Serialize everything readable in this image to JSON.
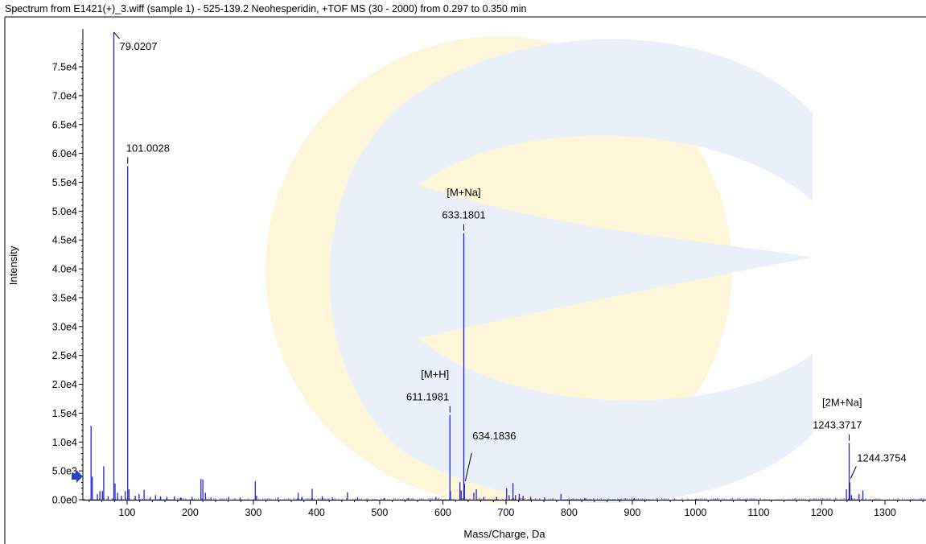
{
  "window": {
    "title": "Spectrum from E1421(+)_3.wiff (sample 1) - 525-139.2 Neohesperidin, +TOF MS (30 - 2000) from 0.297 to 0.350 min"
  },
  "colors": {
    "spectrum": "#2222dd",
    "axis": "#000000",
    "marker": "#2244cc",
    "watermark_yellow": "#fdf6d8",
    "watermark_blue": "#eaf0fa"
  },
  "chart_data": {
    "type": "bar",
    "xlabel": "Mass/Charge, Da",
    "ylabel": "Intensity",
    "xlim": [
      30,
      1365
    ],
    "ylim": [
      0,
      81000
    ],
    "grid": false,
    "legend": "none",
    "x_ticks": [
      {
        "value": 100,
        "label": "100"
      },
      {
        "value": 200,
        "label": "200"
      },
      {
        "value": 300,
        "label": "300"
      },
      {
        "value": 400,
        "label": "400"
      },
      {
        "value": 500,
        "label": "500"
      },
      {
        "value": 600,
        "label": "600"
      },
      {
        "value": 700,
        "label": "700"
      },
      {
        "value": 800,
        "label": "800"
      },
      {
        "value": 900,
        "label": "900"
      },
      {
        "value": 1000,
        "label": "1000"
      },
      {
        "value": 1100,
        "label": "1100"
      },
      {
        "value": 1200,
        "label": "1200"
      },
      {
        "value": 1300,
        "label": "1300"
      }
    ],
    "y_ticks": [
      {
        "value": 0,
        "label": "0.0e0"
      },
      {
        "value": 5000,
        "label": "5.0e3"
      },
      {
        "value": 10000,
        "label": "1.0e4"
      },
      {
        "value": 15000,
        "label": "1.5e4"
      },
      {
        "value": 20000,
        "label": "2.0e4"
      },
      {
        "value": 25000,
        "label": "2.5e4"
      },
      {
        "value": 30000,
        "label": "3.0e4"
      },
      {
        "value": 35000,
        "label": "3.5e4"
      },
      {
        "value": 40000,
        "label": "4.0e4"
      },
      {
        "value": 45000,
        "label": "4.5e4"
      },
      {
        "value": 50000,
        "label": "5.0e4"
      },
      {
        "value": 55000,
        "label": "5.5e4"
      },
      {
        "value": 60000,
        "label": "6.0e4"
      },
      {
        "value": 65000,
        "label": "6.5e4"
      },
      {
        "value": 70000,
        "label": "7.0e4"
      },
      {
        "value": 75000,
        "label": "7.5e4"
      }
    ],
    "peaks": [
      {
        "mz": 43,
        "intensity": 12800
      },
      {
        "mz": 45,
        "intensity": 4000
      },
      {
        "mz": 53,
        "intensity": 1000
      },
      {
        "mz": 57,
        "intensity": 1500
      },
      {
        "mz": 61,
        "intensity": 1500
      },
      {
        "mz": 63,
        "intensity": 5800
      },
      {
        "mz": 70,
        "intensity": 600
      },
      {
        "mz": 79.0207,
        "intensity": 81000
      },
      {
        "mz": 81,
        "intensity": 2800
      },
      {
        "mz": 85,
        "intensity": 1200
      },
      {
        "mz": 91,
        "intensity": 700
      },
      {
        "mz": 97,
        "intensity": 1500
      },
      {
        "mz": 101.0028,
        "intensity": 57800
      },
      {
        "mz": 103,
        "intensity": 1800
      },
      {
        "mz": 113,
        "intensity": 700
      },
      {
        "mz": 119,
        "intensity": 1000
      },
      {
        "mz": 127,
        "intensity": 1700
      },
      {
        "mz": 137,
        "intensity": 500
      },
      {
        "mz": 145,
        "intensity": 800
      },
      {
        "mz": 153,
        "intensity": 600
      },
      {
        "mz": 163,
        "intensity": 500
      },
      {
        "mz": 175,
        "intensity": 600
      },
      {
        "mz": 185,
        "intensity": 400
      },
      {
        "mz": 203,
        "intensity": 500
      },
      {
        "mz": 217,
        "intensity": 3600
      },
      {
        "mz": 220,
        "intensity": 3500
      },
      {
        "mz": 224,
        "intensity": 1200
      },
      {
        "mz": 233,
        "intensity": 400
      },
      {
        "mz": 261,
        "intensity": 500
      },
      {
        "mz": 279,
        "intensity": 400
      },
      {
        "mz": 303,
        "intensity": 3200
      },
      {
        "mz": 305,
        "intensity": 700
      },
      {
        "mz": 339,
        "intensity": 400
      },
      {
        "mz": 371,
        "intensity": 1200
      },
      {
        "mz": 377,
        "intensity": 500
      },
      {
        "mz": 393,
        "intensity": 1900
      },
      {
        "mz": 409,
        "intensity": 600
      },
      {
        "mz": 425,
        "intensity": 400
      },
      {
        "mz": 449,
        "intensity": 1300
      },
      {
        "mz": 465,
        "intensity": 400
      },
      {
        "mz": 507,
        "intensity": 300
      },
      {
        "mz": 545,
        "intensity": 300
      },
      {
        "mz": 589,
        "intensity": 500
      },
      {
        "mz": 611.1981,
        "intensity": 14700
      },
      {
        "mz": 612,
        "intensity": 1500
      },
      {
        "mz": 627,
        "intensity": 3000
      },
      {
        "mz": 629,
        "intensity": 1600
      },
      {
        "mz": 633.1801,
        "intensity": 46200
      },
      {
        "mz": 634.1836,
        "intensity": 2800
      },
      {
        "mz": 649,
        "intensity": 1200
      },
      {
        "mz": 653,
        "intensity": 1800
      },
      {
        "mz": 665,
        "intensity": 500
      },
      {
        "mz": 685,
        "intensity": 500
      },
      {
        "mz": 701,
        "intensity": 2000
      },
      {
        "mz": 705,
        "intensity": 800
      },
      {
        "mz": 711,
        "intensity": 2900
      },
      {
        "mz": 715,
        "intensity": 800
      },
      {
        "mz": 721,
        "intensity": 1000
      },
      {
        "mz": 727,
        "intensity": 700
      },
      {
        "mz": 739,
        "intensity": 500
      },
      {
        "mz": 761,
        "intensity": 400
      },
      {
        "mz": 787,
        "intensity": 1000
      },
      {
        "mz": 825,
        "intensity": 300
      },
      {
        "mz": 903,
        "intensity": 300
      },
      {
        "mz": 1001,
        "intensity": 200
      },
      {
        "mz": 1239,
        "intensity": 1800
      },
      {
        "mz": 1243.3717,
        "intensity": 9800
      },
      {
        "mz": 1244.3754,
        "intensity": 3000
      },
      {
        "mz": 1247,
        "intensity": 800
      },
      {
        "mz": 1259,
        "intensity": 1000
      },
      {
        "mz": 1265,
        "intensity": 1600
      }
    ],
    "peak_labels": [
      {
        "mz": 79.0207,
        "intensity": 81000,
        "label": "79.0207"
      },
      {
        "mz": 101.0028,
        "intensity": 57800,
        "label": "101.0028"
      },
      {
        "mz": 633.1801,
        "intensity": 46200,
        "label": "633.1801",
        "annotation": "[M+Na]"
      },
      {
        "mz": 611.1981,
        "intensity": 14700,
        "label": "611.1981",
        "annotation": "[M+H]"
      },
      {
        "mz": 634.1836,
        "intensity": 2800,
        "label": "634.1836"
      },
      {
        "mz": 1243.3717,
        "intensity": 9800,
        "label": "1243.3717",
        "annotation": "[2M+Na]"
      },
      {
        "mz": 1244.3754,
        "intensity": 3000,
        "label": "1244.3754"
      }
    ]
  }
}
